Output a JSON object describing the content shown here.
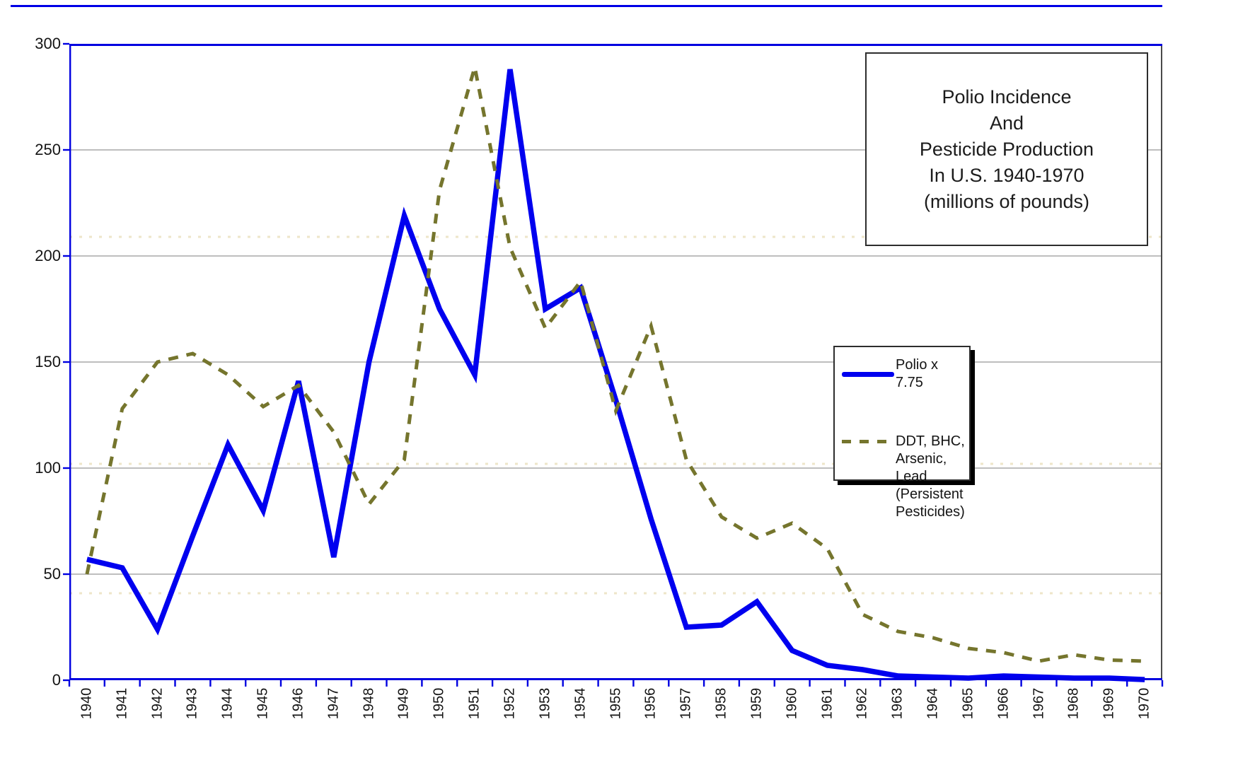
{
  "chart_data": {
    "type": "line",
    "title_lines": [
      "Polio Incidence",
      "And",
      "Pesticide Production",
      "In U.S. 1940-1970",
      "(millions of pounds)"
    ],
    "categories": [
      "1940",
      "1941",
      "1942",
      "1943",
      "1944",
      "1945",
      "1946",
      "1947",
      "1948",
      "1949",
      "1950",
      "1951",
      "1952",
      "1953",
      "1954",
      "1955",
      "1956",
      "1957",
      "1958",
      "1959",
      "1960",
      "1961",
      "1962",
      "1963",
      "1964",
      "1965",
      "1966",
      "1967",
      "1968",
      "1969",
      "1970"
    ],
    "series": [
      {
        "name": "Polio x 7.75",
        "style": "solid",
        "color": "#0000ef",
        "values": [
          57,
          53,
          24,
          68,
          111,
          80,
          141,
          58,
          150,
          219,
          175,
          144,
          288,
          175,
          185,
          132,
          76,
          25,
          26,
          37,
          14,
          7,
          5,
          2,
          1.5,
          1,
          2,
          1.5,
          1,
          1,
          0.3
        ]
      },
      {
        "name": "DDT, BHC, Arsenic, Lead (Persistent Pesticides)",
        "style": "dashed",
        "color": "#75752d",
        "values": [
          50,
          128,
          150,
          154,
          144,
          129,
          139,
          117,
          83,
          104,
          231,
          289,
          204,
          166,
          188,
          127,
          167,
          104,
          77,
          67,
          74,
          62,
          31,
          23,
          20,
          15,
          13,
          9,
          12,
          9.5,
          9
        ]
      }
    ],
    "xlabel": "",
    "ylabel": "",
    "ylim": [
      0,
      300
    ],
    "yticks": [
      0,
      50,
      100,
      150,
      200,
      250,
      300
    ],
    "grid": true,
    "faint_minor_lines": [
      209,
      102,
      41
    ],
    "legend_position": "right"
  },
  "legend": {
    "item1_label": "Polio x 7.75",
    "item2_lines": [
      "DDT, BHC, Arsenic,",
      "Lead (Persistent",
      "Pesticides)"
    ]
  },
  "colors": {
    "polio_line": "#0000ef",
    "pesticide_line": "#75752d",
    "axis": "#0000e0",
    "gridline": "#b5b5b5",
    "plot_right_border": "#4a4a4a",
    "faint_minor_line": "#eee5c9"
  }
}
